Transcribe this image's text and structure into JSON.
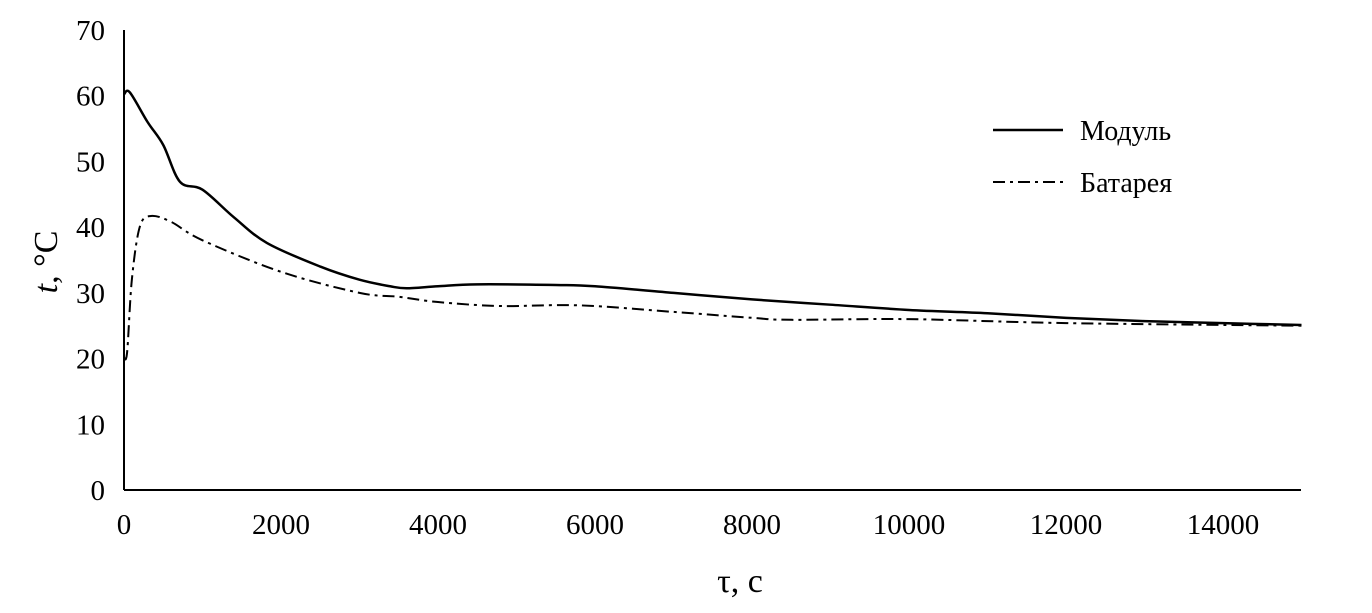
{
  "chart_data": {
    "type": "line",
    "title": "",
    "xlabel": "τ, с",
    "ylabel_italic": "t",
    "ylabel_rest": ", °C",
    "xlim": [
      0,
      15000
    ],
    "ylim": [
      0,
      70
    ],
    "xticks": [
      "0",
      "2000",
      "4000",
      "6000",
      "8000",
      "10000",
      "12000",
      "14000"
    ],
    "yticks": [
      "0",
      "10",
      "20",
      "30",
      "40",
      "50",
      "60",
      "70"
    ],
    "grid": false,
    "legend_position": "top-right",
    "series": [
      {
        "name": "Модуль",
        "style": "solid",
        "x": [
          0,
          75,
          300,
          500,
          713,
          1000,
          1400,
          1820,
          2500,
          3000,
          3390,
          3600,
          4000,
          4500,
          5500,
          6000,
          7000,
          8000,
          9000,
          10000,
          11000,
          12000,
          13000,
          14000,
          15000
        ],
        "y": [
          60.2,
          60.5,
          56,
          52.5,
          46.9,
          45.7,
          41.5,
          37.6,
          34,
          32,
          31.0,
          30.7,
          31.0,
          31.3,
          31.2,
          31.0,
          30,
          29,
          28.2,
          27.4,
          26.9,
          26.2,
          25.7,
          25.4,
          25.1
        ]
      },
      {
        "name": "Батарея",
        "style": "dash-dot",
        "x": [
          0,
          40,
          100,
          200,
          340,
          600,
          1000,
          2000,
          3000,
          3500,
          4000,
          4790,
          5800,
          7000,
          8000,
          8500,
          10000,
          12000,
          15000
        ],
        "y": [
          20.1,
          21,
          32,
          40,
          41.7,
          40.8,
          38,
          33.2,
          30,
          29.4,
          28.6,
          28.0,
          28.1,
          27.1,
          26.2,
          25.9,
          26.0,
          25.4,
          25.0
        ]
      }
    ]
  }
}
